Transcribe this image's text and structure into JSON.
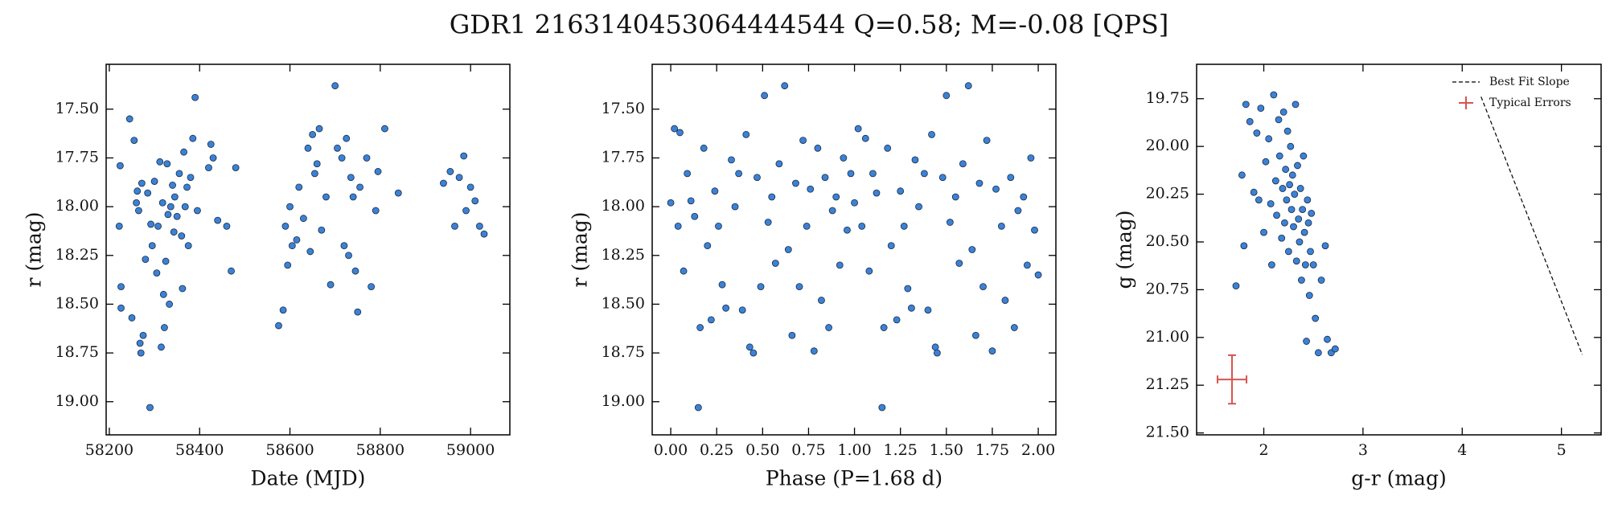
{
  "title": "GDR1 2163140453064444544  Q=0.58; M=-0.08 [QPS]",
  "chart_data": [
    {
      "type": "scatter",
      "xlabel": "Date (MJD)",
      "ylabel": "r (mag)",
      "y_inverted": true,
      "xlim": [
        58193,
        59087
      ],
      "ylim": [
        17.27,
        19.17
      ],
      "xticks": [
        58200,
        58400,
        58600,
        58800,
        59000
      ],
      "yticks": [
        {
          "value": 17.5,
          "label": "17.50"
        },
        {
          "value": 17.75,
          "label": "17.75"
        },
        {
          "value": 18.0,
          "label": "18.00"
        },
        {
          "value": 18.25,
          "label": "18.25"
        },
        {
          "value": 18.5,
          "label": "18.50"
        },
        {
          "value": 18.75,
          "label": "18.75"
        },
        {
          "value": 19.0,
          "label": "19.00"
        }
      ],
      "color": "#3b82d6",
      "x": [
        58222,
        58224,
        58226,
        58226,
        58245,
        58250,
        58255,
        58260,
        58262,
        58265,
        58268,
        58270,
        58272,
        58275,
        58280,
        58285,
        58290,
        58292,
        58295,
        58300,
        58305,
        58308,
        58312,
        58315,
        58318,
        58320,
        58322,
        58325,
        58328,
        58330,
        58333,
        58336,
        58340,
        58343,
        58345,
        58350,
        58355,
        58360,
        58362,
        58365,
        58368,
        58372,
        58375,
        58380,
        58385,
        58390,
        58395,
        58420,
        58425,
        58430,
        58440,
        58460,
        58470,
        58480,
        58575,
        58585,
        58590,
        58595,
        58600,
        58605,
        58615,
        58620,
        58630,
        58640,
        58645,
        58650,
        58655,
        58660,
        58665,
        58670,
        58680,
        58690,
        58700,
        58705,
        58715,
        58720,
        58725,
        58730,
        58735,
        58740,
        58745,
        58750,
        58755,
        58770,
        58780,
        58790,
        58795,
        58810,
        58840,
        58940,
        58955,
        58965,
        58975,
        58985,
        58990,
        59000,
        59010,
        59020,
        59030
      ],
      "values": [
        18.1,
        17.79,
        18.41,
        18.52,
        17.55,
        18.57,
        17.66,
        17.98,
        17.92,
        18.02,
        18.7,
        18.75,
        17.88,
        18.66,
        18.27,
        17.93,
        19.03,
        18.09,
        18.2,
        17.87,
        18.34,
        18.1,
        17.77,
        18.72,
        17.98,
        18.45,
        18.62,
        18.28,
        17.78,
        18.04,
        18.5,
        18.0,
        17.89,
        18.13,
        17.95,
        18.05,
        17.83,
        18.15,
        18.42,
        17.72,
        18.0,
        17.9,
        18.2,
        17.85,
        17.65,
        17.44,
        18.02,
        17.8,
        17.68,
        17.75,
        18.07,
        18.1,
        18.33,
        17.8,
        18.61,
        18.53,
        18.1,
        18.3,
        18.0,
        18.2,
        18.17,
        17.9,
        18.06,
        17.7,
        18.23,
        17.63,
        17.83,
        17.78,
        17.6,
        18.12,
        17.95,
        18.4,
        17.38,
        17.7,
        17.75,
        18.2,
        17.65,
        18.25,
        17.85,
        17.95,
        18.33,
        18.54,
        17.9,
        17.75,
        18.41,
        18.02,
        17.82,
        17.6,
        17.93,
        17.88,
        17.82,
        18.1,
        17.85,
        17.74,
        18.02,
        17.9,
        17.97,
        18.1,
        18.14
      ]
    },
    {
      "type": "scatter",
      "xlabel": "Phase (P=1.68 d)",
      "ylabel": "r (mag)",
      "y_inverted": true,
      "xlim": [
        -0.101,
        2.096
      ],
      "ylim": [
        17.27,
        19.17
      ],
      "xticks": [
        {
          "value": 0,
          "label": "0.00"
        },
        {
          "value": 0.25,
          "label": "0.25"
        },
        {
          "value": 0.5,
          "label": "0.50"
        },
        {
          "value": 0.75,
          "label": "0.75"
        },
        {
          "value": 1,
          "label": "1.00"
        },
        {
          "value": 1.25,
          "label": "1.25"
        },
        {
          "value": 1.5,
          "label": "1.50"
        },
        {
          "value": 1.75,
          "label": "1.75"
        },
        {
          "value": 2,
          "label": "2.00"
        }
      ],
      "yticks": [
        {
          "value": 17.5,
          "label": "17.50"
        },
        {
          "value": 17.75,
          "label": "17.75"
        },
        {
          "value": 18.0,
          "label": "18.00"
        },
        {
          "value": 18.25,
          "label": "18.25"
        },
        {
          "value": 18.5,
          "label": "18.50"
        },
        {
          "value": 18.75,
          "label": "18.75"
        },
        {
          "value": 19.0,
          "label": "19.00"
        }
      ],
      "color": "#3b82d6",
      "x": [
        0.0,
        0.02,
        0.04,
        0.05,
        0.07,
        0.09,
        0.11,
        0.13,
        0.15,
        0.16,
        0.18,
        0.2,
        0.22,
        0.24,
        0.26,
        0.28,
        0.3,
        0.33,
        0.35,
        0.37,
        0.39,
        0.41,
        0.43,
        0.45,
        0.47,
        0.49,
        0.51,
        0.53,
        0.55,
        0.57,
        0.59,
        0.62,
        0.64,
        0.66,
        0.68,
        0.7,
        0.72,
        0.74,
        0.76,
        0.78,
        0.8,
        0.82,
        0.84,
        0.86,
        0.88,
        0.9,
        0.92,
        0.94,
        0.96,
        0.98,
        1.0,
        1.02,
        1.04,
        1.06,
        1.08,
        1.1,
        1.12,
        1.15,
        1.16,
        1.18,
        1.2,
        1.23,
        1.25,
        1.27,
        1.29,
        1.31,
        1.33,
        1.35,
        1.38,
        1.4,
        1.42,
        1.44,
        1.45,
        1.48,
        1.5,
        1.52,
        1.55,
        1.57,
        1.59,
        1.62,
        1.64,
        1.66,
        1.68,
        1.7,
        1.72,
        1.75,
        1.77,
        1.8,
        1.82,
        1.85,
        1.87,
        1.89,
        1.92,
        1.94,
        1.96,
        1.98,
        2.0
      ],
      "values": [
        17.98,
        17.6,
        18.1,
        17.62,
        18.33,
        17.83,
        17.97,
        18.05,
        19.03,
        18.62,
        17.7,
        18.2,
        18.58,
        17.92,
        18.1,
        18.4,
        18.52,
        17.76,
        18.0,
        17.83,
        18.53,
        17.63,
        18.72,
        18.75,
        17.85,
        18.41,
        17.43,
        18.08,
        17.95,
        18.29,
        17.78,
        17.38,
        18.22,
        18.66,
        17.88,
        18.41,
        17.66,
        18.1,
        17.91,
        18.74,
        17.7,
        18.48,
        17.85,
        18.62,
        18.02,
        17.95,
        18.3,
        17.75,
        18.12,
        17.83,
        17.98,
        17.6,
        18.1,
        17.65,
        18.33,
        17.83,
        17.93,
        19.03,
        18.62,
        17.7,
        18.2,
        18.58,
        17.92,
        18.1,
        18.42,
        18.52,
        17.76,
        18.0,
        17.83,
        18.53,
        17.63,
        18.72,
        18.75,
        17.85,
        17.43,
        18.08,
        17.95,
        18.29,
        17.78,
        17.38,
        18.22,
        18.66,
        17.88,
        18.41,
        17.66,
        18.74,
        17.91,
        18.1,
        18.48,
        17.85,
        18.62,
        18.02,
        17.95,
        18.3,
        17.75,
        18.12,
        18.35
      ]
    },
    {
      "type": "scatter",
      "xlabel": "g-r (mag)",
      "ylabel": "g (mag)",
      "y_inverted": true,
      "xlim": [
        1.323,
        5.4
      ],
      "ylim": [
        19.57,
        21.51
      ],
      "xticks": [
        2,
        3,
        4,
        5
      ],
      "yticks": [
        {
          "value": 19.75,
          "label": "19.75"
        },
        {
          "value": 20.0,
          "label": "20.00"
        },
        {
          "value": 20.25,
          "label": "20.25"
        },
        {
          "value": 20.5,
          "label": "20.50"
        },
        {
          "value": 20.75,
          "label": "20.75"
        },
        {
          "value": 21.0,
          "label": "21.00"
        },
        {
          "value": 21.25,
          "label": "21.25"
        },
        {
          "value": 21.5,
          "label": "21.50"
        }
      ],
      "color": "#3b82d6",
      "x": [
        1.72,
        1.8,
        1.78,
        1.82,
        1.86,
        1.9,
        1.93,
        1.95,
        1.97,
        2.0,
        2.02,
        2.05,
        2.07,
        2.08,
        2.1,
        2.12,
        2.13,
        2.15,
        2.16,
        2.18,
        2.19,
        2.2,
        2.21,
        2.22,
        2.23,
        2.24,
        2.25,
        2.26,
        2.27,
        2.28,
        2.29,
        2.3,
        2.31,
        2.32,
        2.33,
        2.34,
        2.35,
        2.36,
        2.37,
        2.38,
        2.39,
        2.4,
        2.41,
        2.42,
        2.43,
        2.44,
        2.45,
        2.46,
        2.47,
        2.48,
        2.5,
        2.52,
        2.55,
        2.58,
        2.62,
        2.64,
        2.68,
        2.72
      ],
      "values": [
        20.73,
        20.52,
        20.15,
        19.78,
        19.87,
        20.24,
        19.93,
        20.28,
        19.8,
        20.45,
        20.08,
        19.96,
        20.3,
        20.62,
        19.73,
        20.18,
        20.36,
        19.86,
        20.05,
        20.48,
        20.22,
        19.82,
        20.4,
        20.12,
        20.28,
        19.92,
        20.55,
        20.2,
        20.0,
        20.33,
        20.15,
        20.42,
        20.25,
        19.78,
        20.6,
        20.1,
        20.38,
        20.5,
        20.22,
        20.7,
        20.33,
        20.05,
        20.45,
        20.62,
        21.02,
        20.28,
        20.4,
        20.78,
        20.55,
        20.35,
        20.62,
        20.9,
        21.08,
        20.7,
        20.52,
        21.01,
        21.08,
        21.06
      ],
      "legend": "upper right",
      "lines": [
        {
          "name": "Best Fit Slope",
          "color": "#000000",
          "x": [
            4.19,
            5.21
          ],
          "values": [
            19.74,
            21.09
          ]
        }
      ],
      "errorbar": {
        "name": "Typical Errors",
        "color": "#d9534f",
        "x": 1.68,
        "y": 21.22,
        "xerr": 0.146,
        "yerr": 0.127
      }
    }
  ]
}
